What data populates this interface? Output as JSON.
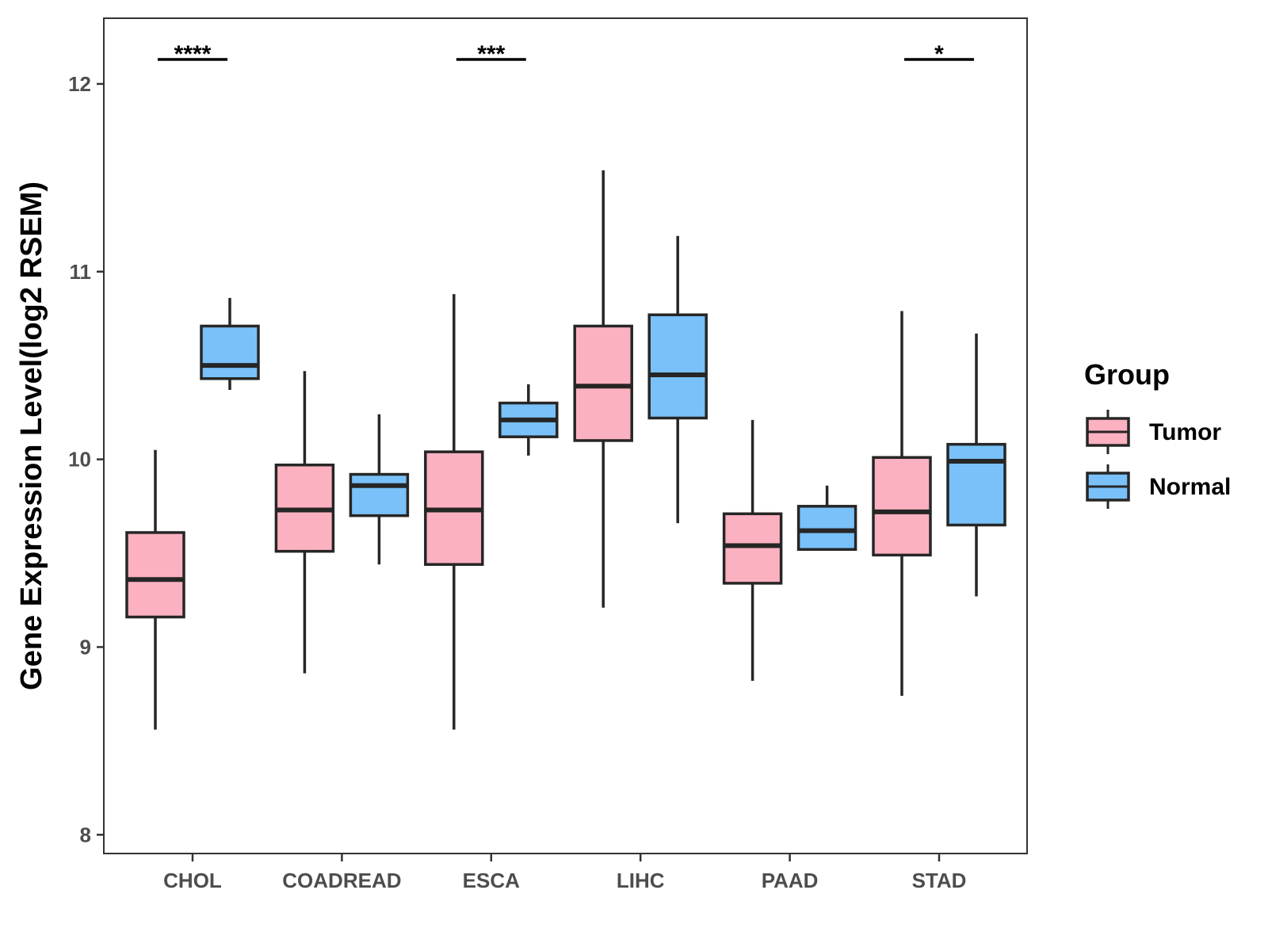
{
  "chart_data": {
    "type": "boxplot",
    "title": "",
    "xlabel": "",
    "ylabel": "Gene Expression Level(log2 RSEM)",
    "ylim": [
      7.9,
      12.35
    ],
    "y_ticks": [
      8,
      9,
      10,
      11,
      12
    ],
    "categories": [
      "CHOL",
      "COADREAD",
      "ESCA",
      "LIHC",
      "PAAD",
      "STAD"
    ],
    "legend": {
      "title": "Group",
      "position": "right",
      "items": [
        {
          "name": "Tumor",
          "color": "#fbb1c0"
        },
        {
          "name": "Normal",
          "color": "#79c1f8"
        }
      ]
    },
    "series": [
      {
        "name": "Tumor",
        "color": "#fbb1c0",
        "boxes": [
          {
            "category": "CHOL",
            "min": 8.56,
            "q1": 9.16,
            "median": 9.36,
            "q3": 9.61,
            "max": 10.05
          },
          {
            "category": "COADREAD",
            "min": 8.86,
            "q1": 9.51,
            "median": 9.73,
            "q3": 9.97,
            "max": 10.47
          },
          {
            "category": "ESCA",
            "min": 8.56,
            "q1": 9.44,
            "median": 9.73,
            "q3": 10.04,
            "max": 10.88
          },
          {
            "category": "LIHC",
            "min": 9.21,
            "q1": 10.1,
            "median": 10.39,
            "q3": 10.71,
            "max": 11.54
          },
          {
            "category": "PAAD",
            "min": 8.82,
            "q1": 9.34,
            "median": 9.54,
            "q3": 9.71,
            "max": 10.21
          },
          {
            "category": "STAD",
            "min": 8.74,
            "q1": 9.49,
            "median": 9.72,
            "q3": 10.01,
            "max": 10.79
          }
        ]
      },
      {
        "name": "Normal",
        "color": "#79c1f8",
        "boxes": [
          {
            "category": "CHOL",
            "min": 10.37,
            "q1": 10.43,
            "median": 10.5,
            "q3": 10.71,
            "max": 10.86
          },
          {
            "category": "COADREAD",
            "min": 9.44,
            "q1": 9.7,
            "median": 9.86,
            "q3": 9.92,
            "max": 10.24
          },
          {
            "category": "ESCA",
            "min": 10.02,
            "q1": 10.12,
            "median": 10.21,
            "q3": 10.3,
            "max": 10.4
          },
          {
            "category": "LIHC",
            "min": 9.66,
            "q1": 10.22,
            "median": 10.45,
            "q3": 10.77,
            "max": 11.19
          },
          {
            "category": "PAAD",
            "min": 9.52,
            "q1": 9.52,
            "median": 9.62,
            "q3": 9.75,
            "max": 9.86
          },
          {
            "category": "STAD",
            "min": 9.27,
            "q1": 9.65,
            "median": 9.99,
            "q3": 10.08,
            "max": 10.67
          }
        ]
      }
    ],
    "significance": [
      {
        "category": "CHOL",
        "label": "****"
      },
      {
        "category": "ESCA",
        "label": "***"
      },
      {
        "category": "STAD",
        "label": "*"
      }
    ]
  }
}
